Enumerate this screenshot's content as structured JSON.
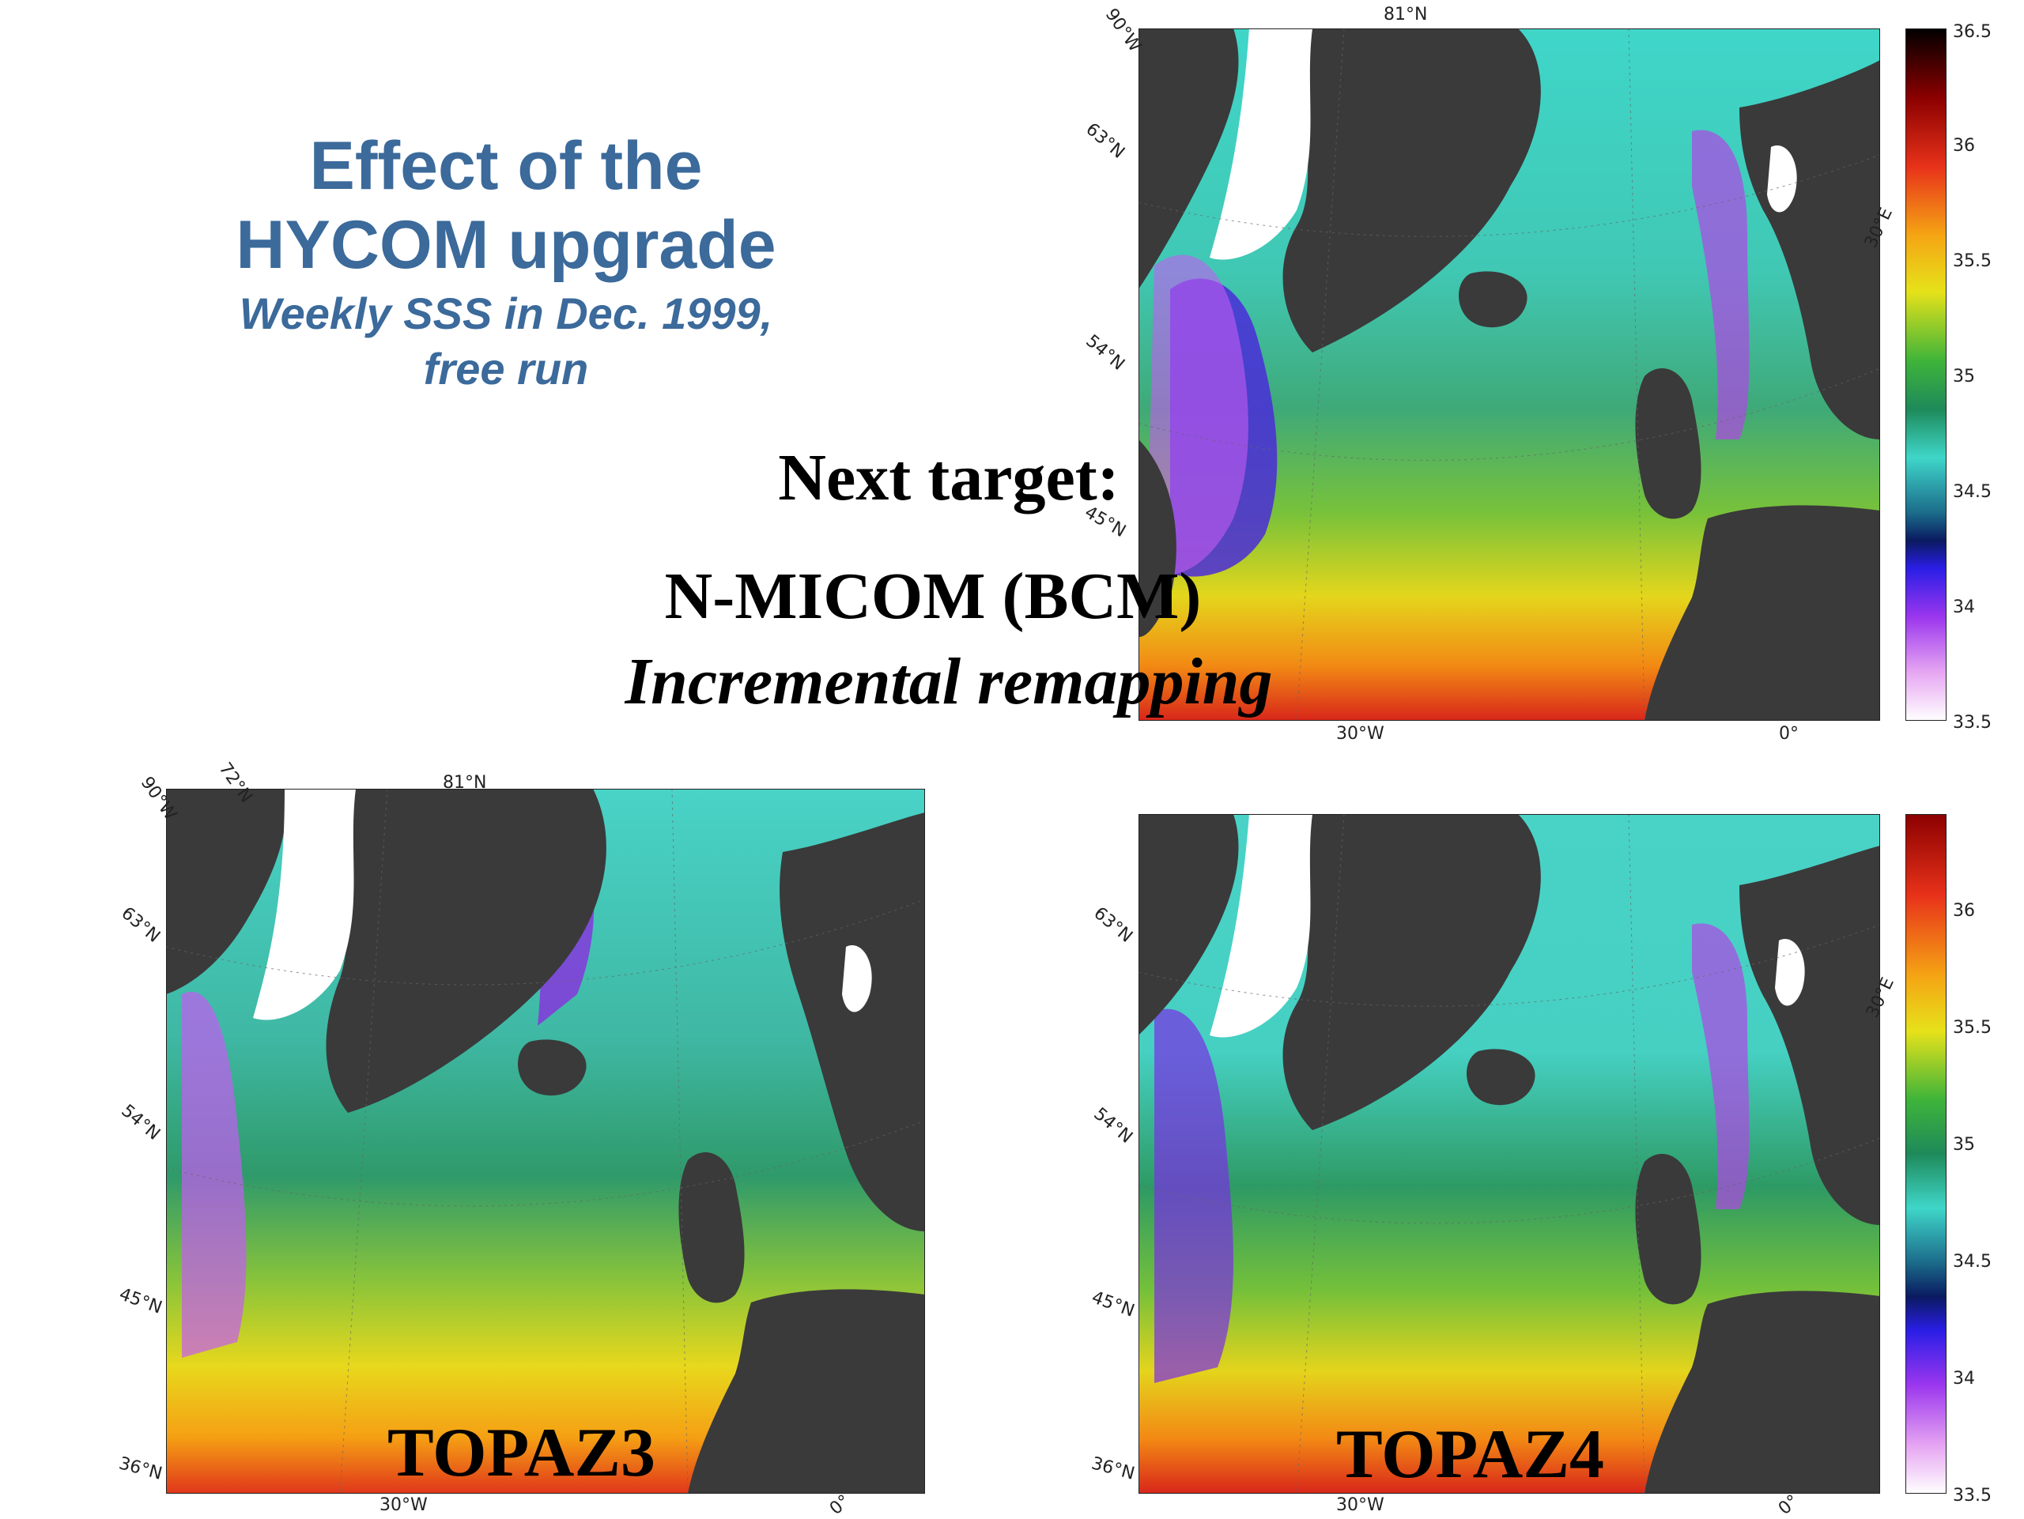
{
  "slide": {
    "title_line1": "Effect of the",
    "title_line2": "HYCOM upgrade",
    "subtitle_line1": "Weekly SSS in Dec. 1999,",
    "subtitle_line2": "free run",
    "next_target": "Next target:",
    "model_name": "N-MICOM (BCM)",
    "method": "Incremental remapping",
    "title_color": "#3b6a9b"
  },
  "panels": {
    "top": {
      "lat_labels": [
        "63°N",
        "54°N",
        "45°N"
      ],
      "lon_labels": [
        "90°W",
        "81°N",
        "30°W",
        "0°",
        "30°E"
      ]
    },
    "bottom_left": {
      "name": "TOPAZ3",
      "lat_labels": [
        "63°N",
        "54°N",
        "45°N",
        "36°N"
      ],
      "lon_labels": [
        "90°W",
        "72°N",
        "81°N",
        "30°W",
        "0°"
      ]
    },
    "bottom_right": {
      "name": "TOPAZ4",
      "lat_labels": [
        "63°N",
        "54°N",
        "45°N",
        "36°N"
      ],
      "lon_labels": [
        "30°W",
        "0°",
        "30°E"
      ]
    }
  },
  "colorbar_top": {
    "ticks": [
      "36.5",
      "36",
      "35.5",
      "35",
      "34.5",
      "34",
      "33.5"
    ]
  },
  "colorbar_bottom": {
    "ticks": [
      "36",
      "35.5",
      "35",
      "34.5",
      "34",
      "33.5"
    ]
  }
}
